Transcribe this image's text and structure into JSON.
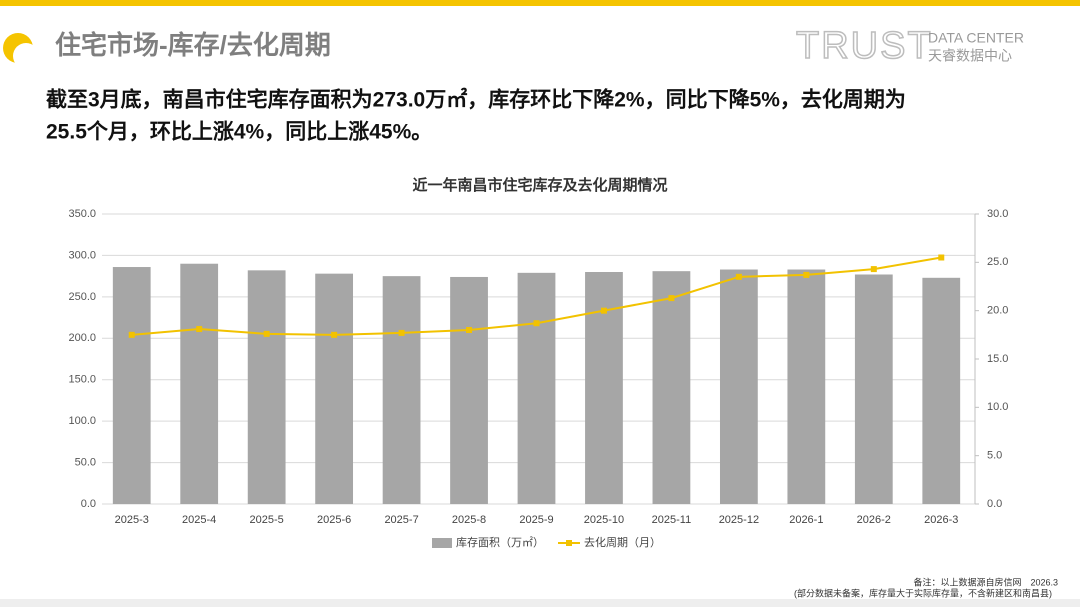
{
  "header": {
    "title": "住宅市场-库存/去化周期",
    "brand": "TRUST",
    "brand_en": "DATA CENTER",
    "brand_cn": "天睿数据中心"
  },
  "summary": [
    "截至3月底，南昌市住宅库存面积为273.0万㎡，库存环比下降2%，同比下降5%，去化周期为",
    "25.5个月，环比上涨4%，同比上涨45%。"
  ],
  "notes": [
    "备注：以上数据源自房信网　2026.3",
    "(部分数据未备案，库存量大于实际库存量，不含新建区和南昌县)"
  ],
  "chart_data": {
    "type": "bar",
    "title": "近一年南昌市住宅库存及去化周期情况",
    "categories": [
      "2025-3",
      "2025-4",
      "2025-5",
      "2025-6",
      "2025-7",
      "2025-8",
      "2025-9",
      "2025-10",
      "2025-11",
      "2025-12",
      "2026-1",
      "2026-2",
      "2026-3"
    ],
    "series": [
      {
        "name": "库存面积（万㎡）",
        "type": "bar",
        "color": "#a6a6a6",
        "values": [
          286,
          290,
          282,
          278,
          275,
          274,
          279,
          280,
          281,
          283,
          283,
          277,
          273.0
        ]
      },
      {
        "name": "去化周期（月）",
        "type": "line",
        "axis": "y2",
        "color": "#f2c200",
        "values": [
          17.5,
          18.1,
          17.6,
          17.5,
          17.7,
          18.0,
          18.7,
          20.0,
          21.3,
          23.5,
          23.7,
          24.3,
          25.5
        ]
      }
    ],
    "ylim": [
      0,
      350
    ],
    "yticks": [
      {
        "value": 0,
        "label": "0.0"
      },
      {
        "value": 50,
        "label": "50.0"
      },
      {
        "value": 100,
        "label": "100.0"
      },
      {
        "value": 150,
        "label": "150.0"
      },
      {
        "value": 200,
        "label": "200.0"
      },
      {
        "value": 250,
        "label": "250.0"
      },
      {
        "value": 300,
        "label": "300.0"
      },
      {
        "value": 350,
        "label": "350.0"
      }
    ],
    "y2lim": [
      0,
      30
    ],
    "y2ticks": [
      {
        "value": 0,
        "label": "0.0"
      },
      {
        "value": 5,
        "label": "5.0"
      },
      {
        "value": 10,
        "label": "10.0"
      },
      {
        "value": 15,
        "label": "15.0"
      },
      {
        "value": 20,
        "label": "20.0"
      },
      {
        "value": 25,
        "label": "25.0"
      },
      {
        "value": 30,
        "label": "30.0"
      }
    ],
    "grid": true
  }
}
